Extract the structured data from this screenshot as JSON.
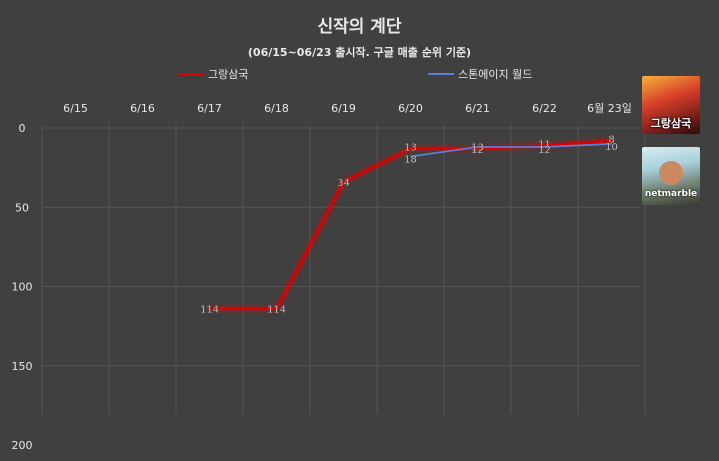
{
  "chart_data": {
    "type": "line",
    "title": "신작의 계단",
    "subtitle": "(06/15~06/23 출시작. 구글 매출 순위 기준)",
    "categories": [
      "6/15",
      "6/16",
      "6/17",
      "6/18",
      "6/19",
      "6/20",
      "6/21",
      "6/22",
      "6월 23일"
    ],
    "series": [
      {
        "name": "그랑삼국",
        "color": "#e00000",
        "values": [
          null,
          null,
          114,
          114,
          34,
          13,
          13,
          11,
          8
        ]
      },
      {
        "name": "스톤에이지 월드",
        "color": "#5b7fd6",
        "values": [
          null,
          null,
          null,
          null,
          null,
          18,
          12,
          12,
          10
        ]
      }
    ],
    "y_axis": {
      "ticks": [
        0,
        50,
        100,
        150,
        200
      ],
      "inverted": true,
      "ylim": [
        0,
        200
      ]
    },
    "grid": true,
    "legend_position": "top"
  },
  "thumbnails": [
    {
      "name": "grand-samguk-icon",
      "label": "그랑삼국"
    },
    {
      "name": "stone-age-world-icon",
      "label": "netmarble"
    }
  ]
}
